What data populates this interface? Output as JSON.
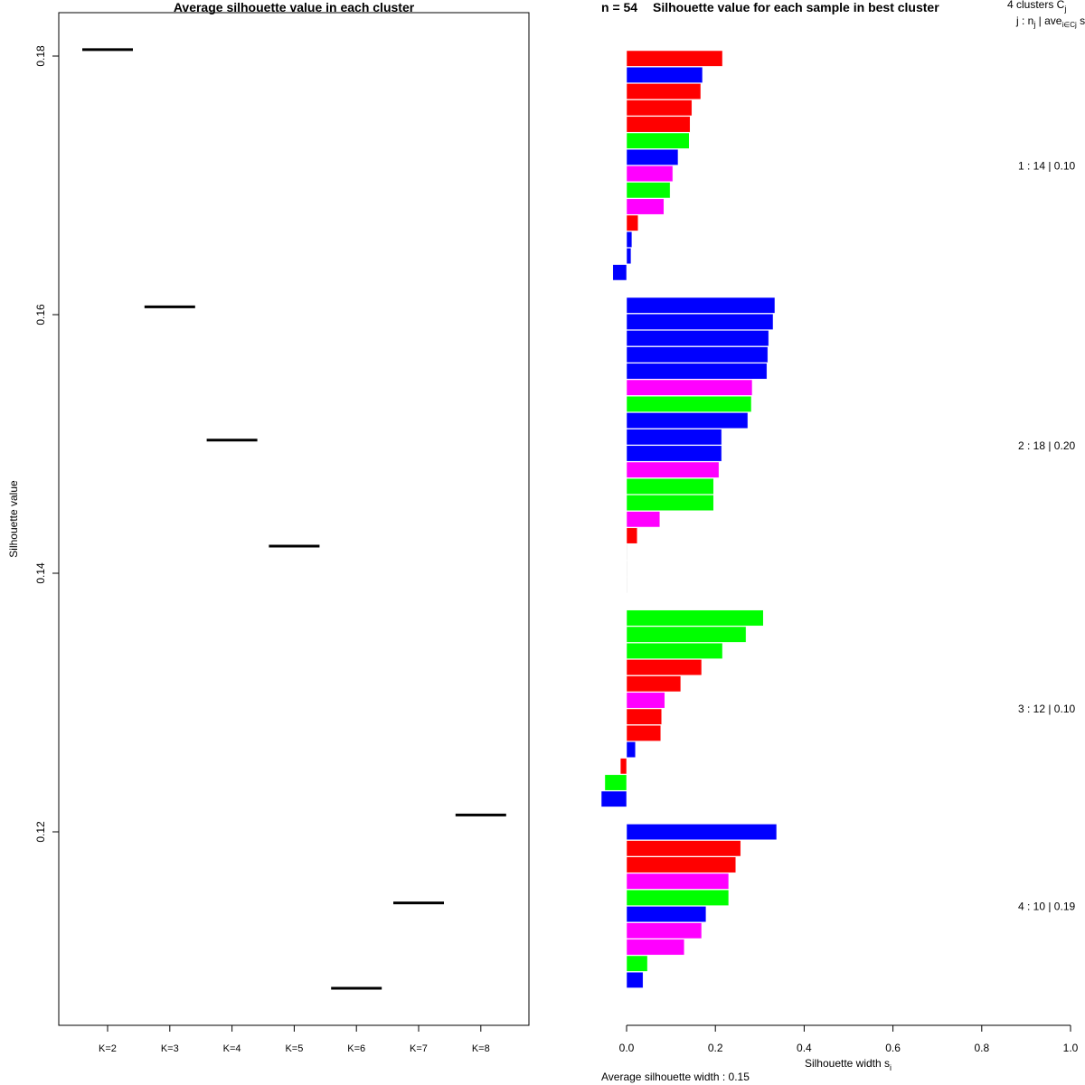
{
  "chart_data": [
    {
      "type": "line",
      "title": "Average silhouette value in each cluster",
      "xlabel": "",
      "ylabel": "Silhouette value",
      "categories": [
        "K=2",
        "K=3",
        "K=4",
        "K=5",
        "K=6",
        "K=7",
        "K=8"
      ],
      "values": [
        0.1805,
        0.1606,
        0.1503,
        0.1421,
        0.1079,
        0.1145,
        0.1213
      ],
      "yticks": [
        "0.12",
        "0.14",
        "0.16",
        "0.18"
      ],
      "ytick_values": [
        0.12,
        0.14,
        0.16,
        0.18
      ],
      "ylim": [
        0.1058,
        0.184
      ],
      "grid": false
    },
    {
      "type": "bar",
      "orientation": "horizontal",
      "title": "Silhouette value for each sample in best cluster",
      "title_overlap": "n = 54",
      "xlabel": "Silhouette width s",
      "xlabel_sub": "i",
      "xticks": [
        "0.0",
        "0.2",
        "0.4",
        "0.6",
        "0.8",
        "1.0"
      ],
      "xtick_values": [
        0,
        0.2,
        0.4,
        0.6,
        0.8,
        1.0
      ],
      "xlim": [
        -0.057,
        1.0
      ],
      "header": {
        "line1": "4 clusters C",
        "line1_sub": "j",
        "line2": "j :  n",
        "line2_sub": "j",
        "line2_rest": " | ave",
        "line2_sub2": "i∈Cj",
        "line2_end": "  s"
      },
      "footer": "Average silhouette width : 0.15",
      "colors": {
        "red": "#ff0000",
        "blue": "#0000ff",
        "green": "#00ff00",
        "magenta": "#ff00ff",
        "gray": "#bebebe"
      },
      "clusters": [
        {
          "label": "1 :  14  |  0.10",
          "values": [
            0.216,
            0.171,
            0.167,
            0.147,
            0.143,
            0.141,
            0.116,
            0.104,
            0.098,
            0.084,
            0.026,
            0.012,
            0.01,
            -0.031
          ],
          "colors": [
            "red",
            "blue",
            "red",
            "red",
            "red",
            "green",
            "blue",
            "magenta",
            "green",
            "magenta",
            "red",
            "blue",
            "blue",
            "blue"
          ]
        },
        {
          "label": "2 :  18  |  0.20",
          "values": [
            0.334,
            0.33,
            0.32,
            0.318,
            0.316,
            0.283,
            0.281,
            0.273,
            0.214,
            0.214,
            0.208,
            0.196,
            0.196,
            0.075,
            0.024,
            0.001,
            0.001,
            0.001
          ],
          "colors": [
            "blue",
            "blue",
            "blue",
            "blue",
            "blue",
            "magenta",
            "green",
            "blue",
            "blue",
            "blue",
            "magenta",
            "green",
            "green",
            "magenta",
            "red",
            "gray",
            "gray",
            "gray"
          ]
        },
        {
          "label": "3 :  12  |  0.10",
          "values": [
            0.308,
            0.269,
            0.216,
            0.169,
            0.122,
            0.086,
            0.079,
            0.077,
            0.02,
            -0.014,
            -0.049,
            -0.057
          ],
          "colors": [
            "green",
            "green",
            "green",
            "red",
            "red",
            "magenta",
            "red",
            "red",
            "blue",
            "red",
            "green",
            "blue"
          ]
        },
        {
          "label": "4 :  10  |  0.19",
          "values": [
            0.338,
            0.257,
            0.246,
            0.23,
            0.23,
            0.179,
            0.169,
            0.13,
            0.047,
            0.037
          ],
          "colors": [
            "blue",
            "red",
            "red",
            "magenta",
            "green",
            "blue",
            "magenta",
            "magenta",
            "green",
            "blue"
          ]
        }
      ]
    }
  ]
}
